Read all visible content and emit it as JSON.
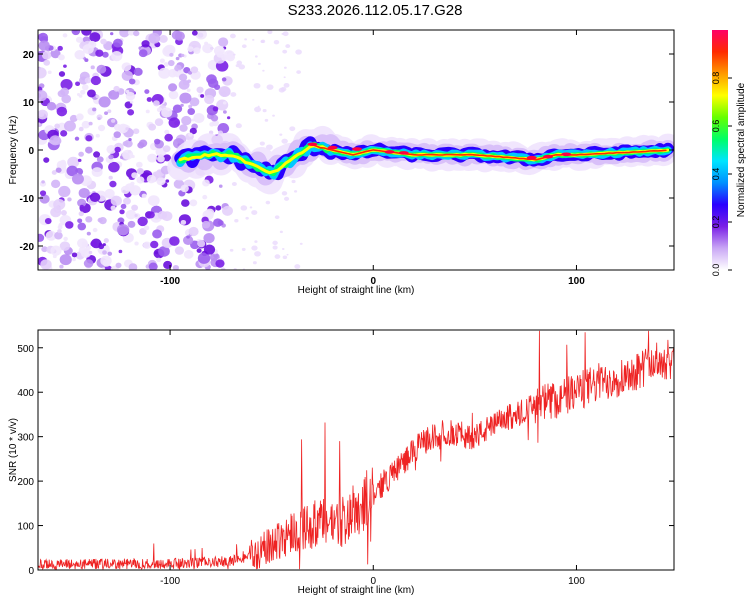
{
  "figure": {
    "title": "S233.2026.112.05.17.G28"
  },
  "chart_data": [
    {
      "type": "heatmap",
      "xlabel": "Height of straight line (km)",
      "ylabel": "Frequency (Hz)",
      "xlim": [
        -165,
        148
      ],
      "ylim": [
        -25,
        25
      ],
      "x_ticks": [
        -100,
        0,
        100
      ],
      "y_ticks": [
        -20,
        -10,
        0,
        10,
        20
      ],
      "grid": false,
      "colorbar": {
        "label": "Normalized spectral amplitude",
        "range": [
          0,
          1
        ],
        "ticks": [
          0.0,
          0.2,
          0.4,
          0.6,
          0.8
        ],
        "colors": [
          "#ffffff",
          "#c9a6f5",
          "#7a1fe6",
          "#2a00ff",
          "#0090ff",
          "#00e5ff",
          "#00ff66",
          "#66ff00",
          "#ffff00",
          "#ff9a00",
          "#ff2a00",
          "#ff0066"
        ]
      },
      "ridge": {
        "x": [
          -95,
          -80,
          -70,
          -60,
          -50,
          -40,
          -30,
          -20,
          -10,
          0,
          20,
          50,
          80,
          90,
          100,
          148
        ],
        "frequency": [
          -2,
          -1,
          -1,
          -3,
          -5,
          -2,
          1,
          0,
          -1,
          0,
          -1,
          -1,
          -2,
          -1,
          -1,
          0
        ]
      }
    },
    {
      "type": "line",
      "xlabel": "Height of straight line (km)",
      "ylabel": "SNR (10 * v/v)",
      "xlim": [
        -165,
        148
      ],
      "ylim": [
        0,
        540
      ],
      "x_ticks": [
        -100,
        0,
        100
      ],
      "y_ticks": [
        0,
        100,
        200,
        300,
        400,
        500
      ],
      "grid": false,
      "series": [
        {
          "color": "#ee2222",
          "trend_x": [
            -165,
            -110,
            -90,
            -70,
            -55,
            -45,
            -35,
            -25,
            -15,
            -5,
            5,
            15,
            25,
            35,
            50,
            65,
            80,
            95,
            110,
            125,
            140,
            148
          ],
          "trend_y": [
            12,
            14,
            15,
            20,
            40,
            75,
            95,
            105,
            110,
            150,
            195,
            245,
            290,
            310,
            300,
            340,
            370,
            390,
            420,
            440,
            470,
            475
          ]
        }
      ]
    }
  ]
}
